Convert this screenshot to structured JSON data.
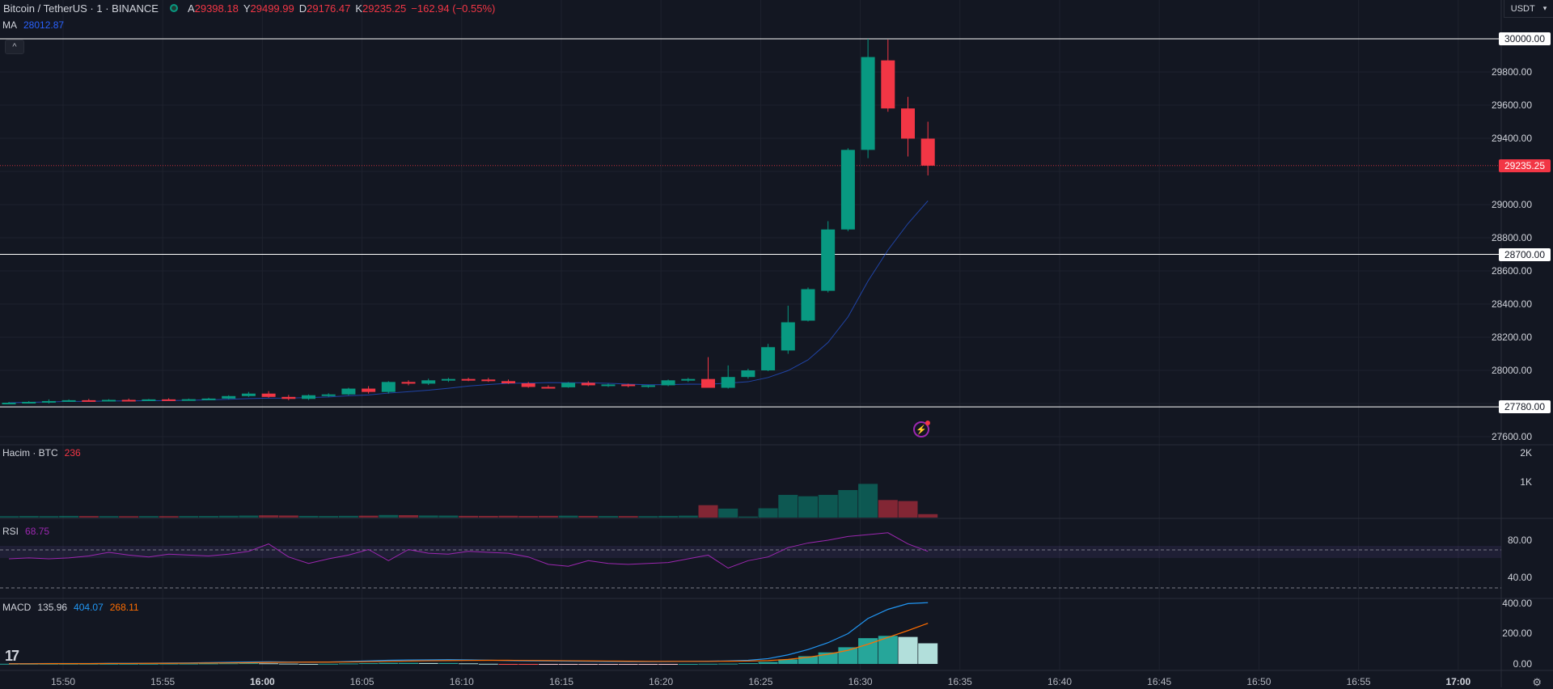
{
  "header": {
    "symbol": "Bitcoin / TetherUS · 1 · BINANCE",
    "ohlc": [
      {
        "k": "A",
        "v": "29398.18"
      },
      {
        "k": "Y",
        "v": "29499.99"
      },
      {
        "k": "D",
        "v": "29176.47"
      },
      {
        "k": "K",
        "v": "29235.25"
      }
    ],
    "change": "−162.94 (−0.55%)",
    "currency": "USDT",
    "ma_label": "MA",
    "ma_value": "28012.87"
  },
  "colors": {
    "up": "#089981",
    "down": "#f23645",
    "background": "#131722",
    "grid": "#1e222d",
    "rsi": "#9c27b0",
    "macd": "#2196f3",
    "signal": "#ff6d00",
    "ma": "#2962ff"
  },
  "price_axis": {
    "ticks": [
      "29800.00",
      "29600.00",
      "29400.00",
      "29000.00",
      "28800.00",
      "28600.00",
      "28400.00",
      "28200.00",
      "28000.00",
      "27600.00"
    ],
    "tags": [
      {
        "value": "30000.00",
        "style": "white"
      },
      {
        "value": "29235.25",
        "style": "red"
      },
      {
        "value": "28700.00",
        "style": "white"
      },
      {
        "value": "27780.00",
        "style": "white"
      }
    ]
  },
  "volume_pane": {
    "label": "Hacim · BTC",
    "value": "236",
    "ticks": [
      "2K",
      "1K"
    ]
  },
  "rsi_pane": {
    "label": "RSI",
    "value": "68.75",
    "ticks": [
      "80.00",
      "40.00"
    ]
  },
  "macd_pane": {
    "label": "MACD",
    "v1": "135.96",
    "v2": "404.07",
    "v3": "268.11",
    "ticks": [
      "400.00",
      "200.00",
      "0.00"
    ]
  },
  "time_axis": [
    "15:50",
    "15:55",
    "16:00",
    "16:05",
    "16:10",
    "16:15",
    "16:20",
    "16:25",
    "16:30",
    "16:35",
    "16:40",
    "16:45",
    "16:50",
    "16:55",
    "17:00"
  ],
  "chart_data": {
    "type": "candlestick",
    "interval": "1 min",
    "y_range": [
      27580,
      30050
    ],
    "x_labels": [
      "15:50",
      "15:55",
      "16:00",
      "16:05",
      "16:10",
      "16:15",
      "16:20",
      "16:25",
      "16:30",
      "16:35",
      "16:40",
      "16:45",
      "16:50",
      "16:55",
      "17:00"
    ],
    "horizontal_lines": [
      30000,
      28700,
      27780
    ],
    "last_price": 29235.25,
    "candles": [
      {
        "o": 27800,
        "h": 27810,
        "l": 27795,
        "c": 27805
      },
      {
        "o": 27805,
        "h": 27815,
        "l": 27800,
        "c": 27810
      },
      {
        "o": 27810,
        "h": 27825,
        "l": 27800,
        "c": 27815
      },
      {
        "o": 27815,
        "h": 27825,
        "l": 27810,
        "c": 27820
      },
      {
        "o": 27820,
        "h": 27828,
        "l": 27814,
        "c": 27818
      },
      {
        "o": 27818,
        "h": 27826,
        "l": 27812,
        "c": 27822
      },
      {
        "o": 27822,
        "h": 27830,
        "l": 27816,
        "c": 27820
      },
      {
        "o": 27820,
        "h": 27828,
        "l": 27815,
        "c": 27825
      },
      {
        "o": 27825,
        "h": 27832,
        "l": 27818,
        "c": 27822
      },
      {
        "o": 27822,
        "h": 27830,
        "l": 27818,
        "c": 27826
      },
      {
        "o": 27826,
        "h": 27835,
        "l": 27822,
        "c": 27830
      },
      {
        "o": 27830,
        "h": 27850,
        "l": 27825,
        "c": 27845
      },
      {
        "o": 27845,
        "h": 27870,
        "l": 27840,
        "c": 27860
      },
      {
        "o": 27860,
        "h": 27875,
        "l": 27835,
        "c": 27840
      },
      {
        "o": 27840,
        "h": 27852,
        "l": 27820,
        "c": 27828
      },
      {
        "o": 27828,
        "h": 27855,
        "l": 27822,
        "c": 27850
      },
      {
        "o": 27850,
        "h": 27862,
        "l": 27840,
        "c": 27855
      },
      {
        "o": 27855,
        "h": 27895,
        "l": 27850,
        "c": 27890
      },
      {
        "o": 27890,
        "h": 27905,
        "l": 27860,
        "c": 27870
      },
      {
        "o": 27870,
        "h": 27935,
        "l": 27860,
        "c": 27930
      },
      {
        "o": 27930,
        "h": 27940,
        "l": 27910,
        "c": 27920
      },
      {
        "o": 27920,
        "h": 27950,
        "l": 27912,
        "c": 27940
      },
      {
        "o": 27940,
        "h": 27955,
        "l": 27930,
        "c": 27948
      },
      {
        "o": 27948,
        "h": 27956,
        "l": 27935,
        "c": 27945
      },
      {
        "o": 27945,
        "h": 27955,
        "l": 27930,
        "c": 27935
      },
      {
        "o": 27935,
        "h": 27945,
        "l": 27918,
        "c": 27922
      },
      {
        "o": 27922,
        "h": 27930,
        "l": 27895,
        "c": 27900
      },
      {
        "o": 27900,
        "h": 27910,
        "l": 27890,
        "c": 27898
      },
      {
        "o": 27898,
        "h": 27930,
        "l": 27895,
        "c": 27925
      },
      {
        "o": 27925,
        "h": 27935,
        "l": 27905,
        "c": 27910
      },
      {
        "o": 27910,
        "h": 27920,
        "l": 27900,
        "c": 27915
      },
      {
        "o": 27915,
        "h": 27920,
        "l": 27898,
        "c": 27905
      },
      {
        "o": 27905,
        "h": 27912,
        "l": 27895,
        "c": 27910
      },
      {
        "o": 27910,
        "h": 27945,
        "l": 27905,
        "c": 27940
      },
      {
        "o": 27940,
        "h": 27955,
        "l": 27930,
        "c": 27948
      },
      {
        "o": 27948,
        "h": 28080,
        "l": 27900,
        "c": 27895
      },
      {
        "o": 27895,
        "h": 28030,
        "l": 27890,
        "c": 27960
      },
      {
        "o": 27960,
        "h": 28010,
        "l": 27950,
        "c": 28000
      },
      {
        "o": 28000,
        "h": 28160,
        "l": 27995,
        "c": 28140
      },
      {
        "o": 28120,
        "h": 28390,
        "l": 28100,
        "c": 28290
      },
      {
        "o": 28300,
        "h": 28500,
        "l": 28295,
        "c": 28490
      },
      {
        "o": 28480,
        "h": 28900,
        "l": 28470,
        "c": 28850
      },
      {
        "o": 28850,
        "h": 29340,
        "l": 28840,
        "c": 29330
      },
      {
        "o": 29330,
        "h": 30000,
        "l": 29280,
        "c": 29890
      },
      {
        "o": 29870,
        "h": 29995,
        "l": 29560,
        "c": 29580
      },
      {
        "o": 29580,
        "h": 29650,
        "l": 29290,
        "c": 29398
      },
      {
        "o": 29398,
        "h": 29500,
        "l": 29176,
        "c": 29235
      }
    ],
    "volume_series": [
      40,
      45,
      42,
      48,
      44,
      42,
      40,
      43,
      41,
      44,
      46,
      52,
      58,
      66,
      60,
      48,
      45,
      50,
      55,
      75,
      70,
      60,
      58,
      50,
      48,
      52,
      46,
      50,
      55,
      48,
      45,
      44,
      42,
      48,
      56,
      360,
      260,
      30,
      270,
      660,
      620,
      660,
      800,
      980,
      510,
      480,
      100
    ],
    "volume_ticks": [
      1000,
      2000
    ],
    "rsi_series": [
      60,
      61,
      60,
      61,
      63,
      67,
      64,
      62,
      65,
      64,
      63,
      65,
      68,
      76,
      62,
      55,
      60,
      64,
      70,
      58,
      70,
      66,
      65,
      68,
      67,
      66,
      62,
      54,
      52,
      58,
      55,
      54,
      55,
      56,
      60,
      64,
      50,
      58,
      62,
      72,
      77,
      80,
      84,
      86,
      88,
      76,
      68
    ],
    "rsi_band": [
      30,
      70
    ],
    "macd_series": [
      2,
      2,
      3,
      3,
      3,
      4,
      4,
      5,
      6,
      7,
      9,
      11,
      13,
      14,
      13,
      12,
      13,
      16,
      20,
      24,
      26,
      27,
      28,
      27,
      25,
      22,
      20,
      19,
      18,
      17,
      16,
      15,
      15,
      16,
      17,
      18,
      20,
      24,
      35,
      60,
      95,
      140,
      200,
      300,
      360,
      398,
      404
    ],
    "signal_series": [
      1,
      1,
      2,
      2,
      2,
      3,
      3,
      4,
      4,
      5,
      6,
      7,
      8,
      10,
      11,
      12,
      12,
      13,
      15,
      17,
      19,
      21,
      22,
      23,
      24,
      24,
      23,
      22,
      21,
      20,
      19,
      18,
      17,
      17,
      17,
      17,
      18,
      19,
      22,
      30,
      44,
      64,
      90,
      130,
      175,
      220,
      268
    ],
    "hist_series": [
      1,
      1,
      1,
      1,
      1,
      1,
      1,
      1,
      2,
      2,
      3,
      4,
      5,
      4,
      2,
      0,
      1,
      3,
      5,
      7,
      7,
      6,
      6,
      4,
      1,
      -2,
      -3,
      -3,
      -3,
      -3,
      -3,
      -3,
      -2,
      -1,
      0,
      1,
      2,
      5,
      13,
      30,
      51,
      76,
      110,
      170,
      185,
      178,
      136
    ],
    "macd_ticks": [
      0,
      200,
      400
    ]
  }
}
